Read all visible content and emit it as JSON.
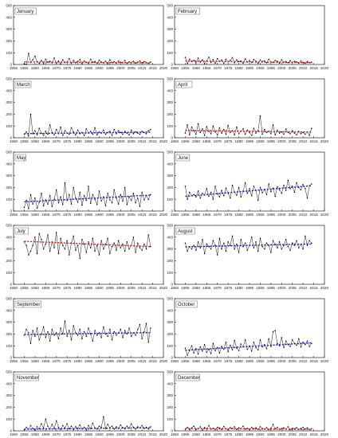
{
  "chart_data": [
    {
      "type": "line",
      "title": "January",
      "x_start": 1955,
      "xlim": [
        1950,
        2020
      ],
      "ylim": [
        0,
        500
      ],
      "xticks": [
        1950,
        1955,
        1960,
        1965,
        1970,
        1975,
        1980,
        1985,
        1990,
        1995,
        2000,
        2005,
        2010,
        2015,
        2020
      ],
      "yticks": [
        0,
        100,
        200,
        300,
        400,
        500
      ],
      "trend_color": "#cc2222",
      "trend": [
        22,
        14
      ],
      "values": [
        5,
        2,
        95,
        18,
        40,
        70,
        25,
        10,
        35,
        8,
        45,
        20,
        28,
        14,
        55,
        12,
        30,
        6,
        40,
        18,
        22,
        50,
        10,
        35,
        15,
        25,
        42,
        8,
        30,
        20,
        12,
        45,
        18,
        26,
        10,
        36,
        22,
        14,
        28,
        8,
        40,
        16,
        24,
        12,
        30,
        20,
        15,
        35,
        10,
        22,
        18,
        28,
        12,
        20,
        30,
        14,
        25,
        18,
        10,
        22
      ]
    },
    {
      "type": "line",
      "title": "February",
      "x_start": 1955,
      "xlim": [
        1950,
        2020
      ],
      "ylim": [
        0,
        500
      ],
      "xticks": [
        1950,
        1955,
        1960,
        1965,
        1970,
        1975,
        1980,
        1985,
        1990,
        1995,
        2000,
        2005,
        2010,
        2015,
        2020
      ],
      "yticks": [
        0,
        100,
        200,
        300,
        400,
        500
      ],
      "trend_color": "#cc2222",
      "trend": [
        30,
        15
      ],
      "values": [
        60,
        10,
        45,
        25,
        35,
        15,
        55,
        20,
        40,
        8,
        30,
        62,
        18,
        42,
        12,
        50,
        28,
        38,
        10,
        45,
        22,
        35,
        58,
        15,
        40,
        25,
        30,
        12,
        48,
        20,
        35,
        18,
        42,
        28,
        10,
        38,
        25,
        30,
        15,
        45,
        22,
        18,
        35,
        28,
        12,
        40,
        20,
        25,
        15,
        32,
        18,
        28,
        22,
        12,
        30,
        18,
        10,
        25,
        15,
        20
      ]
    },
    {
      "type": "line",
      "title": "March",
      "x_start": 1955,
      "xlim": [
        1950,
        2020
      ],
      "ylim": [
        0,
        500
      ],
      "xticks": [
        1950,
        1955,
        1960,
        1965,
        1970,
        1975,
        1980,
        1985,
        1990,
        1995,
        2000,
        2005,
        2010,
        2015,
        2020
      ],
      "yticks": [
        0,
        100,
        200,
        300,
        400,
        500
      ],
      "trend_color": "#2222cc",
      "trend": [
        35,
        48
      ],
      "values": [
        30,
        50,
        15,
        200,
        35,
        60,
        25,
        80,
        40,
        20,
        55,
        30,
        110,
        45,
        25,
        70,
        35,
        90,
        20,
        60,
        40,
        30,
        85,
        50,
        25,
        65,
        35,
        45,
        20,
        75,
        40,
        55,
        30,
        85,
        25,
        50,
        40,
        65,
        30,
        45,
        55,
        20,
        70,
        35,
        60,
        45,
        30,
        55,
        40,
        25,
        65,
        35,
        50,
        40,
        30,
        55,
        45,
        35,
        60,
        70
      ]
    },
    {
      "type": "line",
      "title": "April",
      "x_start": 1955,
      "xlim": [
        1950,
        2020
      ],
      "ylim": [
        0,
        500
      ],
      "xticks": [
        1950,
        1955,
        1960,
        1965,
        1970,
        1975,
        1980,
        1985,
        1990,
        1995,
        2000,
        2005,
        2010,
        2015,
        2020
      ],
      "yticks": [
        0,
        100,
        200,
        300,
        400,
        500
      ],
      "trend_color": "#cc2222",
      "trend": [
        62,
        48
      ],
      "values": [
        40,
        110,
        25,
        90,
        60,
        30,
        120,
        45,
        75,
        20,
        95,
        55,
        35,
        100,
        50,
        25,
        85,
        40,
        70,
        30,
        105,
        45,
        60,
        25,
        90,
        35,
        55,
        75,
        30,
        65,
        45,
        20,
        80,
        40,
        60,
        185,
        30,
        70,
        45,
        55,
        35,
        110,
        25,
        65,
        40,
        50,
        30,
        75,
        45,
        35,
        60,
        40,
        25,
        55,
        35,
        45,
        30,
        50,
        20,
        80
      ]
    },
    {
      "type": "line",
      "title": "May",
      "x_start": 1955,
      "xlim": [
        1950,
        2020
      ],
      "ylim": [
        0,
        500
      ],
      "xticks": [
        1950,
        1955,
        1960,
        1965,
        1970,
        1975,
        1980,
        1985,
        1990,
        1995,
        2000,
        2005,
        2010,
        2015,
        2020
      ],
      "yticks": [
        0,
        100,
        200,
        300,
        400,
        500
      ],
      "trend_color": "#2222cc",
      "trend": [
        78,
        135
      ],
      "values": [
        30,
        90,
        20,
        140,
        60,
        110,
        25,
        75,
        150,
        45,
        95,
        60,
        130,
        40,
        100,
        180,
        70,
        120,
        55,
        240,
        90,
        140,
        60,
        200,
        110,
        75,
        160,
        50,
        130,
        90,
        210,
        65,
        140,
        100,
        55,
        170,
        85,
        120,
        45,
        150,
        95,
        70,
        180,
        110,
        60,
        140,
        85,
        200,
        55,
        120,
        90,
        150,
        70,
        110,
        40,
        160,
        95,
        130,
        100,
        140
      ]
    },
    {
      "type": "line",
      "title": "June",
      "x_start": 1955,
      "xlim": [
        1950,
        2020
      ],
      "ylim": [
        0,
        500
      ],
      "xticks": [
        1950,
        1955,
        1960,
        1965,
        1970,
        1975,
        1980,
        1985,
        1990,
        1995,
        2000,
        2005,
        2010,
        2015,
        2020
      ],
      "yticks": [
        0,
        100,
        200,
        300,
        400,
        500
      ],
      "trend_color": "#2222cc",
      "trend": [
        125,
        215
      ],
      "values": [
        210,
        100,
        160,
        130,
        140,
        120,
        170,
        110,
        150,
        135,
        190,
        125,
        160,
        100,
        210,
        145,
        120,
        175,
        130,
        195,
        150,
        110,
        220,
        160,
        135,
        200,
        120,
        170,
        240,
        150,
        190,
        130,
        210,
        175,
        90,
        200,
        155,
        185,
        140,
        230,
        165,
        195,
        125,
        205,
        180,
        150,
        220,
        175,
        260,
        190,
        210,
        160,
        240,
        200,
        180,
        225,
        190,
        110,
        215,
        230
      ]
    },
    {
      "type": "line",
      "title": "July",
      "x_start": 1955,
      "xlim": [
        1950,
        2020
      ],
      "ylim": [
        0,
        500
      ],
      "xticks": [
        1950,
        1955,
        1960,
        1965,
        1970,
        1975,
        1980,
        1985,
        1990,
        1995,
        2000,
        2005,
        2010,
        2015,
        2020
      ],
      "yticks": [
        0,
        100,
        200,
        300,
        400,
        500
      ],
      "trend_color": "#cc2222",
      "trend": [
        365,
        320
      ],
      "values": [
        360,
        330,
        250,
        280,
        330,
        400,
        260,
        430,
        380,
        300,
        340,
        420,
        280,
        360,
        310,
        440,
        260,
        390,
        330,
        300,
        370,
        250,
        350,
        410,
        290,
        330,
        220,
        380,
        340,
        270,
        360,
        310,
        390,
        280,
        330,
        250,
        370,
        300,
        340,
        390,
        260,
        320,
        350,
        290,
        370,
        310,
        340,
        280,
        360,
        300,
        330,
        400,
        270,
        350,
        310,
        290,
        340,
        300,
        420,
        320
      ]
    },
    {
      "type": "line",
      "title": "August",
      "x_start": 1955,
      "xlim": [
        1950,
        2020
      ],
      "ylim": [
        0,
        500
      ],
      "xticks": [
        1950,
        1955,
        1960,
        1965,
        1970,
        1975,
        1980,
        1985,
        1990,
        1995,
        2000,
        2005,
        2010,
        2015,
        2020
      ],
      "yticks": [
        0,
        100,
        200,
        300,
        400,
        500
      ],
      "trend_color": "#2222cc",
      "trend": [
        318,
        342
      ],
      "values": [
        350,
        280,
        320,
        300,
        330,
        290,
        360,
        310,
        380,
        260,
        340,
        320,
        300,
        370,
        330,
        250,
        390,
        300,
        350,
        280,
        360,
        330,
        410,
        300,
        340,
        270,
        380,
        320,
        350,
        290,
        330,
        400,
        310,
        360,
        280,
        390,
        320,
        300,
        350,
        330,
        270,
        370,
        340,
        310,
        360,
        300,
        330,
        380,
        320,
        290,
        350,
        330,
        370,
        310,
        340,
        300,
        410,
        330,
        370,
        350
      ]
    },
    {
      "type": "line",
      "title": "September",
      "x_start": 1955,
      "xlim": [
        1950,
        2020
      ],
      "ylim": [
        0,
        500
      ],
      "xticks": [
        1950,
        1955,
        1960,
        1965,
        1970,
        1975,
        1980,
        1985,
        1990,
        1995,
        2000,
        2005,
        2010,
        2015,
        2020
      ],
      "yticks": [
        0,
        100,
        200,
        300,
        400,
        500
      ],
      "trend_color": "#2222cc",
      "trend": [
        195,
        212
      ],
      "values": [
        190,
        240,
        210,
        120,
        230,
        180,
        250,
        150,
        200,
        260,
        170,
        220,
        140,
        240,
        190,
        210,
        160,
        250,
        200,
        310,
        180,
        230,
        150,
        270,
        210,
        190,
        240,
        160,
        220,
        180,
        250,
        200,
        140,
        230,
        190,
        210,
        170,
        260,
        200,
        180,
        240,
        150,
        220,
        190,
        210,
        240,
        170,
        230,
        200,
        250,
        180,
        210,
        190,
        240,
        280,
        160,
        220,
        290,
        130,
        250
      ]
    },
    {
      "type": "line",
      "title": "October",
      "x_start": 1955,
      "xlim": [
        1950,
        2020
      ],
      "ylim": [
        0,
        500
      ],
      "xticks": [
        1950,
        1955,
        1960,
        1965,
        1970,
        1975,
        1980,
        1985,
        1990,
        1995,
        2000,
        2005,
        2010,
        2015,
        2020
      ],
      "yticks": [
        0,
        100,
        200,
        300,
        400,
        500
      ],
      "trend_color": "#2222cc",
      "trend": [
        62,
        125
      ],
      "values": [
        80,
        20,
        60,
        100,
        40,
        75,
        30,
        90,
        55,
        110,
        45,
        70,
        35,
        120,
        60,
        85,
        40,
        95,
        70,
        130,
        50,
        105,
        65,
        145,
        80,
        60,
        115,
        90,
        150,
        70,
        100,
        55,
        130,
        85,
        65,
        150,
        90,
        110,
        75,
        160,
        95,
        220,
        230,
        120,
        100,
        170,
        85,
        140,
        110,
        95,
        150,
        120,
        105,
        160,
        90,
        130,
        110,
        140,
        95,
        120
      ]
    },
    {
      "type": "line",
      "title": "November",
      "x_start": 1955,
      "xlim": [
        1950,
        2020
      ],
      "ylim": [
        0,
        500
      ],
      "xticks": [
        1950,
        1955,
        1960,
        1965,
        1970,
        1975,
        1980,
        1985,
        1990,
        1995,
        2000,
        2005,
        2010,
        2015,
        2020
      ],
      "yticks": [
        0,
        100,
        200,
        300,
        400,
        500
      ],
      "trend_color": "#2222cc",
      "trend": [
        14,
        26
      ],
      "values": [
        10,
        30,
        15,
        45,
        20,
        8,
        35,
        18,
        60,
        25,
        100,
        40,
        15,
        55,
        20,
        85,
        30,
        12,
        45,
        25,
        60,
        18,
        40,
        10,
        35,
        22,
        50,
        15,
        30,
        8,
        45,
        20,
        65,
        25,
        15,
        40,
        30,
        120,
        20,
        55,
        25,
        40,
        15,
        35,
        20,
        50,
        28,
        18,
        40,
        22,
        60,
        30,
        15,
        35,
        25,
        45,
        20,
        30,
        15,
        35
      ]
    },
    {
      "type": "line",
      "title": "December",
      "x_start": 1955,
      "xlim": [
        1950,
        2020
      ],
      "ylim": [
        0,
        500
      ],
      "xticks": [
        1950,
        1955,
        1960,
        1965,
        1970,
        1975,
        1980,
        1985,
        1990,
        1995,
        2000,
        2005,
        2010,
        2015,
        2020
      ],
      "yticks": [
        0,
        100,
        200,
        300,
        400,
        500
      ],
      "trend_color": "#cc2222",
      "trend": [
        20,
        12
      ],
      "values": [
        15,
        30,
        10,
        25,
        40,
        12,
        20,
        35,
        8,
        28,
        18,
        45,
        15,
        22,
        10,
        30,
        25,
        12,
        38,
        18,
        10,
        28,
        20,
        35,
        12,
        25,
        18,
        40,
        15,
        22,
        10,
        30,
        18,
        25,
        12,
        35,
        20,
        15,
        28,
        10,
        22,
        55,
        18,
        30,
        12,
        20,
        25,
        15,
        35,
        10,
        22,
        18,
        28,
        12,
        20,
        30,
        15,
        25,
        10,
        18
      ]
    }
  ]
}
